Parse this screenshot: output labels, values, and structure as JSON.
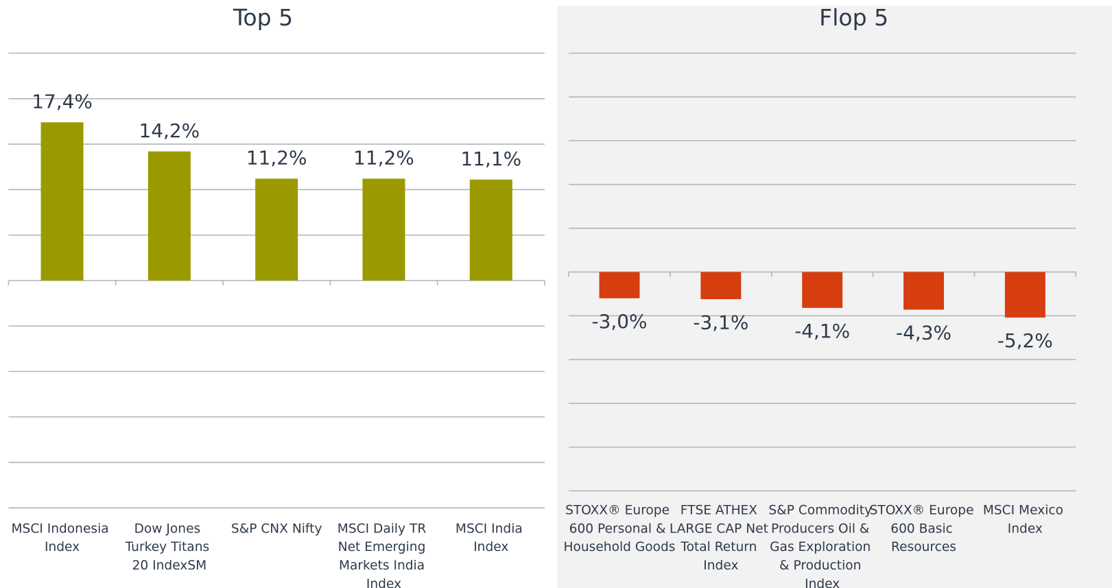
{
  "chart_data": [
    {
      "type": "bar",
      "title": "Top 5",
      "categories": [
        "MSCI Indonesia Index",
        "Dow Jones Turkey Titans 20 IndexSM",
        "S&P CNX Nifty",
        "MSCI Daily TR Net Emerging Markets India Index",
        "MSCI India Index"
      ],
      "values": [
        17.4,
        14.2,
        11.2,
        11.2,
        11.1
      ],
      "value_labels": [
        "17,4%",
        "14,2%",
        "11,2%",
        "11,2%",
        "11,1%"
      ],
      "color": "#9a9a00",
      "ylim": [
        -25,
        25
      ],
      "yticks": [
        -25,
        -20,
        -15,
        -10,
        -5,
        0,
        5,
        10,
        15,
        20,
        25
      ],
      "grid": true
    },
    {
      "type": "bar",
      "title": "Flop 5",
      "categories": [
        "STOXX® Europe 600 Personal & Household Goods",
        "FTSE ATHEX LARGE CAP Net Total Return Index",
        "S&P Commodity Producers Oil & Gas Exploration & Production Index",
        "STOXX® Europe 600 Basic Resources",
        "MSCI Mexico Index"
      ],
      "values": [
        -3.0,
        -3.1,
        -4.1,
        -4.3,
        -5.2
      ],
      "value_labels": [
        "-3,0%",
        "-3,1%",
        "-4,1%",
        "-4,3%",
        "-5,2%"
      ],
      "color": "#d63d0f",
      "ylim": [
        -25,
        25
      ],
      "yticks": [
        -25,
        -20,
        -15,
        -10,
        -5,
        0,
        5,
        10,
        15,
        20,
        25
      ],
      "grid": true
    }
  ]
}
